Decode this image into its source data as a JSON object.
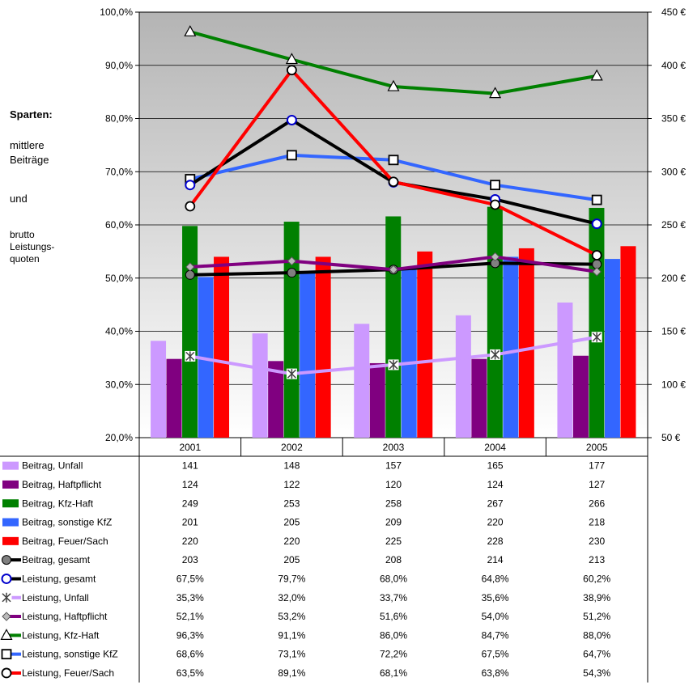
{
  "side_notes": {
    "heading": "Sparten:",
    "line1": "mittlere",
    "line2": "Beiträge",
    "line3": "und",
    "line4": "brutto",
    "line5": "Leistungs-",
    "line6": "quoten"
  },
  "chart_data": {
    "type": "bar+line",
    "categories": [
      "2001",
      "2002",
      "2003",
      "2004",
      "2005"
    ],
    "left_axis": {
      "min": 20,
      "max": 100,
      "step": 10,
      "ticks": [
        "20,0%",
        "30,0%",
        "40,0%",
        "50,0%",
        "60,0%",
        "70,0%",
        "80,0%",
        "90,0%",
        "100,0%"
      ]
    },
    "right_axis": {
      "min": 50,
      "max": 450,
      "step": 50,
      "ticks": [
        "50 €",
        "100 €",
        "150 €",
        "200 €",
        "250 €",
        "300 €",
        "350 €",
        "400 €",
        "450 €"
      ]
    },
    "plot_background": "gradient grey to white",
    "bar_series": [
      {
        "name": "Beitrag, Unfall",
        "color": "#cc99ff",
        "values": [
          141,
          148,
          157,
          165,
          177
        ],
        "labels": [
          "141",
          "148",
          "157",
          "165",
          "177"
        ]
      },
      {
        "name": "Beitrag, Haftpflicht",
        "color": "#800080",
        "values": [
          124,
          122,
          120,
          124,
          127
        ],
        "labels": [
          "124",
          "122",
          "120",
          "124",
          "127"
        ]
      },
      {
        "name": "Beitrag, Kfz-Haft",
        "color": "#008000",
        "values": [
          249,
          253,
          258,
          267,
          266
        ],
        "labels": [
          "249",
          "253",
          "258",
          "267",
          "266"
        ]
      },
      {
        "name": "Beitrag, sonstige KfZ",
        "color": "#3366ff",
        "values": [
          201,
          205,
          209,
          220,
          218
        ],
        "labels": [
          "201",
          "205",
          "209",
          "220",
          "218"
        ]
      },
      {
        "name": "Beitrag, Feuer/Sach",
        "color": "#ff0000",
        "values": [
          220,
          220,
          225,
          228,
          230
        ],
        "labels": [
          "220",
          "220",
          "225",
          "228",
          "230"
        ]
      }
    ],
    "line_series": [
      {
        "name": "Beitrag, gesamt",
        "axis": "right",
        "color": "#000000",
        "marker": "dot-grey",
        "values": [
          203,
          205,
          208,
          214,
          213
        ],
        "labels": [
          "203",
          "205",
          "208",
          "214",
          "213"
        ]
      },
      {
        "name": "Leistung, gesamt",
        "axis": "left",
        "color": "#000000",
        "marker": "circle-blue",
        "values": [
          67.5,
          79.7,
          68.0,
          64.8,
          60.2
        ],
        "labels": [
          "67,5%",
          "79,7%",
          "68,0%",
          "64,8%",
          "60,2%"
        ]
      },
      {
        "name": "Leistung, Unfall",
        "axis": "left",
        "color": "#cc99ff",
        "marker": "asterisk",
        "values": [
          35.3,
          32.0,
          33.7,
          35.6,
          38.9
        ],
        "labels": [
          "35,3%",
          "32,0%",
          "33,7%",
          "35,6%",
          "38,9%"
        ]
      },
      {
        "name": "Leistung, Haftpflicht",
        "axis": "left",
        "color": "#800080",
        "marker": "diamond",
        "values": [
          52.1,
          53.2,
          51.6,
          54.0,
          51.2
        ],
        "labels": [
          "52,1%",
          "53,2%",
          "51,6%",
          "54,0%",
          "51,2%"
        ]
      },
      {
        "name": "Leistung, Kfz-Haft",
        "axis": "left",
        "color": "#008000",
        "marker": "triangle",
        "values": [
          96.3,
          91.1,
          86.0,
          84.7,
          88.0
        ],
        "labels": [
          "96,3%",
          "91,1%",
          "86,0%",
          "84,7%",
          "88,0%"
        ]
      },
      {
        "name": "Leistung, sonstige KfZ",
        "axis": "left",
        "color": "#3366ff",
        "marker": "square",
        "values": [
          68.6,
          73.1,
          72.2,
          67.5,
          64.7
        ],
        "labels": [
          "68,6%",
          "73,1%",
          "72,2%",
          "67,5%",
          "64,7%"
        ]
      },
      {
        "name": "Leistung, Feuer/Sach",
        "axis": "left",
        "color": "#ff0000",
        "marker": "circle",
        "values": [
          63.5,
          89.1,
          68.1,
          63.8,
          54.3
        ],
        "labels": [
          "63,5%",
          "89,1%",
          "68,1%",
          "63,8%",
          "54,3%"
        ]
      }
    ],
    "table_row_order": [
      "Beitrag, Unfall",
      "Beitrag, Haftpflicht",
      "Beitrag, Kfz-Haft",
      "Beitrag, sonstige KfZ",
      "Beitrag, Feuer/Sach",
      "Beitrag, gesamt",
      "Leistung, gesamt",
      "Leistung, Unfall",
      "Leistung, Haftpflicht",
      "Leistung, Kfz-Haft",
      "Leistung, sonstige KfZ",
      "Leistung, Feuer/Sach"
    ]
  }
}
